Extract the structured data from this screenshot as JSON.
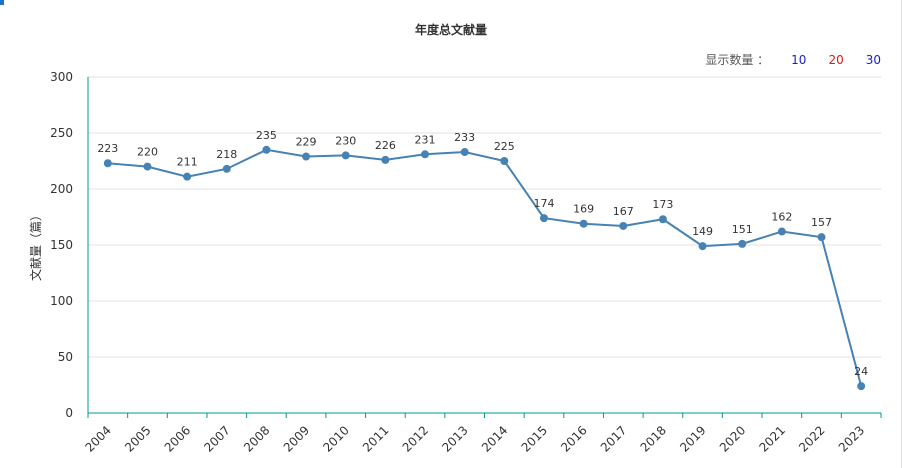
{
  "title": "年度总文献量",
  "count_switcher": {
    "label": "显示数量 ：",
    "options": [
      "10",
      "20",
      "30"
    ]
  },
  "chart_data": {
    "type": "line",
    "title": "年度总文献量",
    "xlabel": "",
    "ylabel": "文献量（篇）",
    "categories": [
      "2004",
      "2005",
      "2006",
      "2007",
      "2008",
      "2009",
      "2010",
      "2011",
      "2012",
      "2013",
      "2014",
      "2015",
      "2016",
      "2017",
      "2018",
      "2019",
      "2020",
      "2021",
      "2022",
      "2023"
    ],
    "values": [
      223,
      220,
      211,
      218,
      235,
      229,
      230,
      226,
      231,
      233,
      225,
      174,
      169,
      167,
      173,
      149,
      151,
      162,
      157,
      24
    ],
    "ylim": [
      0,
      300
    ],
    "yticks": [
      0,
      50,
      100,
      150,
      200,
      250,
      300
    ],
    "grid": true,
    "colors": {
      "line": "#4682b4",
      "axis": "#009999",
      "grid": "#e0e0e0"
    }
  }
}
